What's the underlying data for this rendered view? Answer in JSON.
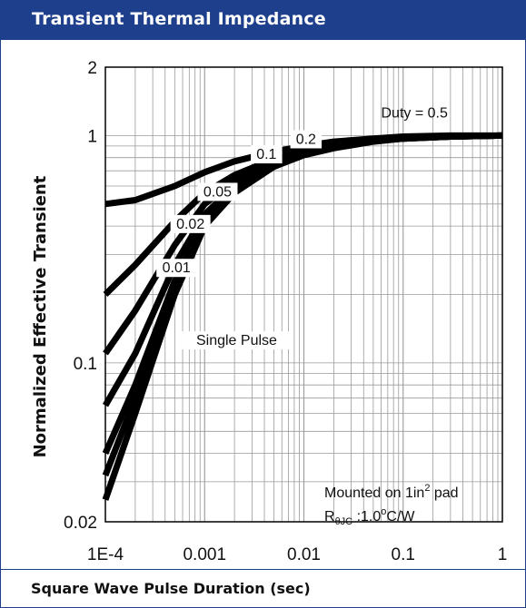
{
  "header": {
    "title": "Transient Thermal Impedance"
  },
  "footer": {
    "xlabel": "Square Wave Pulse Duration (sec)"
  },
  "colors": {
    "accent": "#1e3f8c",
    "curve": "#000000",
    "grid": "#9a9a9a"
  },
  "chart_data": {
    "type": "line",
    "title": "Transient Thermal Impedance",
    "xlabel": "Square Wave Pulse Duration (sec)",
    "ylabel": "Normalized Effective Transient",
    "xscale": "log",
    "yscale": "log",
    "xlim": [
      0.0001,
      1
    ],
    "ylim": [
      0.02,
      2
    ],
    "grid": true,
    "x_ticks": [
      "1E-4",
      "0.001",
      "0.01",
      "0.1",
      "1"
    ],
    "y_ticks": [
      "2",
      "1",
      "0.1",
      "0.02"
    ],
    "series": [
      {
        "name": "Duty = 0.5",
        "x": [
          0.0001,
          0.0002,
          0.0005,
          0.001,
          0.002,
          0.005,
          0.01,
          0.02,
          0.05,
          0.1,
          0.3,
          1
        ],
        "y": [
          0.5,
          0.52,
          0.6,
          0.69,
          0.77,
          0.85,
          0.9,
          0.94,
          0.97,
          0.99,
          1.0,
          1.0
        ]
      },
      {
        "name": "0.2",
        "x": [
          0.0001,
          0.0002,
          0.0005,
          0.001,
          0.002,
          0.005,
          0.01,
          0.02,
          0.05,
          0.1,
          0.3,
          1
        ],
        "y": [
          0.2,
          0.27,
          0.42,
          0.56,
          0.67,
          0.79,
          0.86,
          0.91,
          0.96,
          0.98,
          0.995,
          1.0
        ]
      },
      {
        "name": "0.1",
        "x": [
          0.0001,
          0.0002,
          0.0005,
          0.001,
          0.002,
          0.005,
          0.01,
          0.02,
          0.05,
          0.1,
          0.3,
          1
        ],
        "y": [
          0.11,
          0.17,
          0.33,
          0.5,
          0.63,
          0.77,
          0.85,
          0.9,
          0.955,
          0.975,
          0.99,
          1.0
        ]
      },
      {
        "name": "0.05",
        "x": [
          0.0001,
          0.0002,
          0.0005,
          0.001,
          0.002,
          0.005,
          0.01,
          0.02,
          0.05,
          0.1,
          0.3,
          1
        ],
        "y": [
          0.065,
          0.11,
          0.27,
          0.45,
          0.6,
          0.75,
          0.84,
          0.9,
          0.95,
          0.975,
          0.99,
          1.0
        ]
      },
      {
        "name": "0.02",
        "x": [
          0.0001,
          0.0002,
          0.0005,
          0.001,
          0.002,
          0.005,
          0.01,
          0.02,
          0.05,
          0.1,
          0.3,
          1
        ],
        "y": [
          0.04,
          0.08,
          0.23,
          0.42,
          0.58,
          0.74,
          0.83,
          0.89,
          0.95,
          0.97,
          0.99,
          1.0
        ]
      },
      {
        "name": "0.01",
        "x": [
          0.0001,
          0.0002,
          0.0005,
          0.001,
          0.002,
          0.005,
          0.01,
          0.02,
          0.05,
          0.1,
          0.3,
          1
        ],
        "y": [
          0.032,
          0.07,
          0.21,
          0.41,
          0.57,
          0.73,
          0.83,
          0.89,
          0.945,
          0.97,
          0.99,
          1.0
        ]
      },
      {
        "name": "Single Pulse",
        "x": [
          0.0001,
          0.0002,
          0.0005,
          0.001,
          0.002,
          0.005,
          0.01,
          0.02,
          0.05,
          0.1,
          0.3,
          1
        ],
        "y": [
          0.025,
          0.06,
          0.2,
          0.4,
          0.56,
          0.73,
          0.82,
          0.88,
          0.94,
          0.97,
          0.99,
          1.0
        ]
      }
    ],
    "annotations": {
      "mount_text": "Mounted on 1in",
      "mount_sup": "2",
      "mount_suffix": " pad",
      "r_symbol": "R",
      "r_subscript": "θJC",
      "r_value": " :1.0",
      "r_deg": "o",
      "r_unit": "C/W"
    }
  }
}
